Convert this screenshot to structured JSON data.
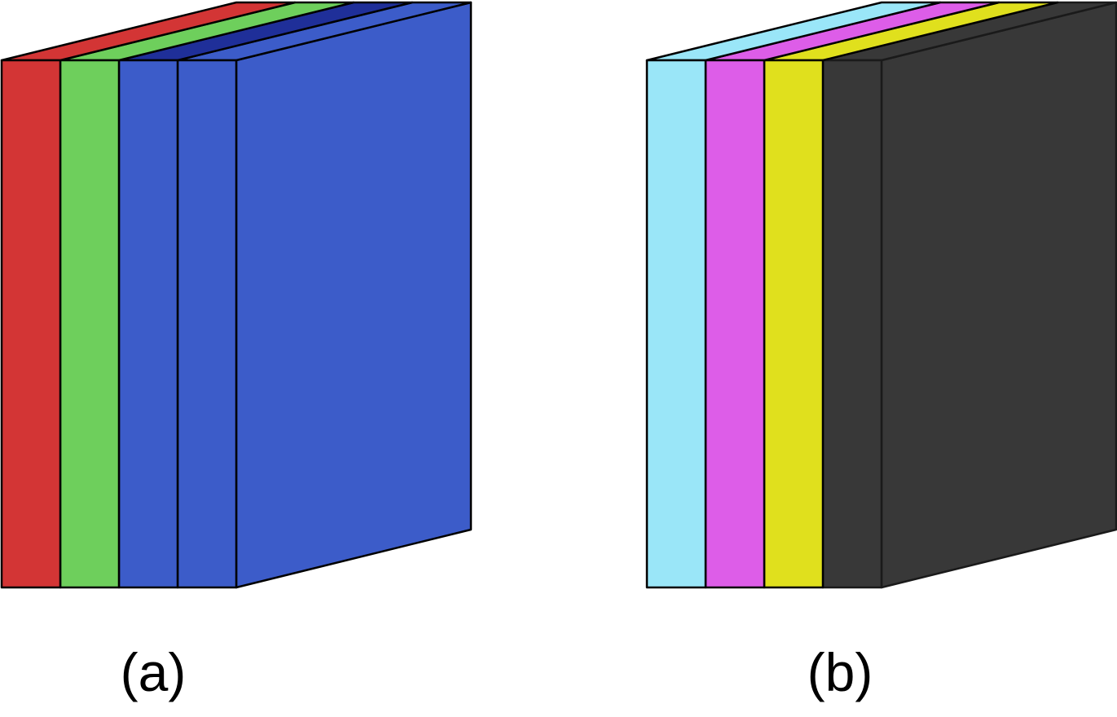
{
  "panels": [
    {
      "caption": "(a)",
      "channels": [
        {
          "face": "#d33535",
          "top": "#d33535"
        },
        {
          "face": "#6ecf5c",
          "top": "#6ecf5c"
        },
        {
          "face": "#3c5cc9",
          "top": "#1f2f99"
        }
      ],
      "block": {
        "face": "#3c5cc9",
        "side": "#3c5cc9",
        "top": "#3c5cc9",
        "edge": "#000000"
      }
    },
    {
      "caption": "(b)",
      "channels": [
        {
          "face": "#9ae6f8",
          "top": "#9ae6f8"
        },
        {
          "face": "#dd5de8",
          "top": "#dd5de8"
        },
        {
          "face": "#e0e01d",
          "top": "#e0e01d"
        }
      ],
      "block": {
        "face": "#383838",
        "side": "#383838",
        "top": "#383838",
        "edge": "#1a1a1a"
      }
    }
  ]
}
